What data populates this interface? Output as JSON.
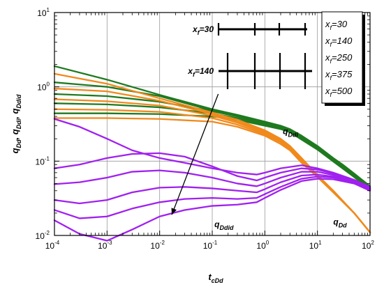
{
  "chart_data": {
    "type": "line",
    "xscale": "log",
    "yscale": "log",
    "xlim": [
      0.0001,
      100
    ],
    "ylim": [
      0.01,
      10
    ],
    "grid": true,
    "xlabel": {
      "main": "t",
      "sub": "cDd"
    },
    "ylabel": {
      "parts": [
        {
          "main": "q",
          "sub": "Dd"
        },
        {
          "main": ", ",
          "sub": ""
        },
        {
          "main": "q",
          "sub": "Ddi"
        },
        {
          "main": ", ",
          "sub": ""
        },
        {
          "main": "q",
          "sub": "Ddid"
        }
      ]
    },
    "xticks": [
      {
        "value": 0.0001,
        "base": "10",
        "exp": "-4"
      },
      {
        "value": 0.001,
        "base": "10",
        "exp": "-3"
      },
      {
        "value": 0.01,
        "base": "10",
        "exp": "-2"
      },
      {
        "value": 0.1,
        "base": "10",
        "exp": "-1"
      },
      {
        "value": 1,
        "base": "10",
        "exp": "0"
      },
      {
        "value": 10,
        "base": "10",
        "exp": "1"
      },
      {
        "value": 100,
        "base": "10",
        "exp": "2"
      }
    ],
    "yticks": [
      {
        "value": 0.01,
        "base": "10",
        "exp": "-2"
      },
      {
        "value": 0.1,
        "base": "10",
        "exp": "-1"
      },
      {
        "value": 1,
        "base": "10",
        "exp": "0"
      },
      {
        "value": 10,
        "base": "10",
        "exp": "1"
      }
    ],
    "colors": {
      "qDdi": "#1f7a1f",
      "qDd": "#f08a1c",
      "qDdid": "#a020f0"
    },
    "legend": {
      "placement": "top-right",
      "entries": [
        {
          "main": "x",
          "sub": "f",
          "value": "=30"
        },
        {
          "main": "x",
          "sub": "f",
          "value": "=140"
        },
        {
          "main": "x",
          "sub": "f",
          "value": "=250"
        },
        {
          "main": "x",
          "sub": "f",
          "value": "=375"
        },
        {
          "main": "x",
          "sub": "f",
          "value": "=500"
        }
      ]
    },
    "annotations": [
      {
        "name": "label-qddi",
        "main": "q",
        "sub": "Ddi",
        "x": 2.2,
        "y": 0.23
      },
      {
        "name": "label-qdd",
        "main": "q",
        "sub": "Dd",
        "x": 20,
        "y": 0.014
      },
      {
        "name": "label-qddid",
        "main": "q",
        "sub": "Ddid",
        "x": 0.11,
        "y": 0.013
      }
    ],
    "arrow": {
      "from": [
        0.13,
        0.8
      ],
      "to": [
        0.017,
        0.019
      ]
    },
    "schematic": [
      {
        "label_main": "x",
        "label_sub": "f",
        "label_value": "=30"
      },
      {
        "label_main": "x",
        "label_sub": "f",
        "label_value": "=140"
      }
    ],
    "series": [
      {
        "group": "qDdi",
        "x": [
          0.0001,
          0.001,
          0.01,
          0.1,
          0.3,
          1,
          2,
          3,
          5,
          10,
          20,
          30,
          50,
          100
        ],
        "y": [
          1.9,
          1.25,
          0.78,
          0.5,
          0.42,
          0.34,
          0.3,
          0.27,
          0.22,
          0.16,
          0.11,
          0.09,
          0.068,
          0.046
        ]
      },
      {
        "group": "qDdi",
        "x": [
          0.0001,
          0.001,
          0.01,
          0.1,
          0.3,
          1,
          2,
          3,
          5,
          10,
          20,
          30,
          50,
          100
        ],
        "y": [
          1.15,
          1.0,
          0.75,
          0.48,
          0.41,
          0.33,
          0.29,
          0.26,
          0.21,
          0.155,
          0.107,
          0.087,
          0.066,
          0.044
        ]
      },
      {
        "group": "qDdi",
        "x": [
          0.0001,
          0.001,
          0.01,
          0.1,
          0.3,
          1,
          2,
          3,
          5,
          10,
          20,
          30,
          50,
          100
        ],
        "y": [
          0.8,
          0.75,
          0.63,
          0.47,
          0.4,
          0.32,
          0.28,
          0.255,
          0.205,
          0.15,
          0.104,
          0.084,
          0.064,
          0.043
        ]
      },
      {
        "group": "qDdi",
        "x": [
          0.0001,
          0.001,
          0.01,
          0.1,
          0.3,
          1,
          2,
          3,
          5,
          10,
          20,
          30,
          50,
          100
        ],
        "y": [
          0.6,
          0.58,
          0.53,
          0.44,
          0.38,
          0.31,
          0.275,
          0.25,
          0.2,
          0.147,
          0.101,
          0.082,
          0.062,
          0.042
        ]
      },
      {
        "group": "qDdi",
        "x": [
          0.0001,
          0.001,
          0.01,
          0.1,
          0.3,
          1,
          2,
          3,
          5,
          10,
          20,
          30,
          50,
          100
        ],
        "y": [
          0.44,
          0.44,
          0.43,
          0.4,
          0.36,
          0.3,
          0.27,
          0.245,
          0.195,
          0.143,
          0.099,
          0.08,
          0.061,
          0.041
        ]
      },
      {
        "group": "qDd",
        "x": [
          0.0001,
          0.001,
          0.01,
          0.1,
          0.3,
          1,
          2,
          3,
          5,
          10,
          20,
          50,
          100
        ],
        "y": [
          1.5,
          1.1,
          0.7,
          0.45,
          0.36,
          0.26,
          0.2,
          0.16,
          0.11,
          0.065,
          0.04,
          0.02,
          0.011
        ]
      },
      {
        "group": "qDd",
        "x": [
          0.0001,
          0.001,
          0.01,
          0.1,
          0.3,
          1,
          2,
          3,
          5,
          10,
          20,
          50,
          100
        ],
        "y": [
          0.95,
          0.87,
          0.65,
          0.43,
          0.34,
          0.25,
          0.19,
          0.155,
          0.105,
          0.064,
          0.04,
          0.02,
          0.011
        ]
      },
      {
        "group": "qDd",
        "x": [
          0.0001,
          0.001,
          0.01,
          0.1,
          0.3,
          1,
          2,
          3,
          5,
          10,
          20,
          50,
          100
        ],
        "y": [
          0.68,
          0.64,
          0.56,
          0.41,
          0.33,
          0.24,
          0.185,
          0.15,
          0.1,
          0.063,
          0.039,
          0.02,
          0.011
        ]
      },
      {
        "group": "qDd",
        "x": [
          0.0001,
          0.001,
          0.01,
          0.1,
          0.3,
          1,
          2,
          3,
          5,
          10,
          20,
          50,
          100
        ],
        "y": [
          0.5,
          0.49,
          0.46,
          0.38,
          0.31,
          0.23,
          0.18,
          0.145,
          0.098,
          0.062,
          0.039,
          0.02,
          0.011
        ]
      },
      {
        "group": "qDd",
        "x": [
          0.0001,
          0.001,
          0.01,
          0.1,
          0.3,
          1,
          2,
          3,
          5,
          10,
          20,
          50,
          100
        ],
        "y": [
          0.38,
          0.38,
          0.37,
          0.34,
          0.29,
          0.22,
          0.17,
          0.14,
          0.095,
          0.061,
          0.038,
          0.02,
          0.011
        ]
      },
      {
        "group": "qDdid",
        "x": [
          0.0001,
          0.0003,
          0.001,
          0.003,
          0.01,
          0.03,
          0.1,
          0.3,
          0.7,
          1,
          2,
          5,
          10,
          20,
          50,
          100
        ],
        "y": [
          0.37,
          0.29,
          0.2,
          0.14,
          0.11,
          0.095,
          0.08,
          0.07,
          0.066,
          0.07,
          0.08,
          0.088,
          0.08,
          0.07,
          0.056,
          0.045
        ]
      },
      {
        "group": "qDdid",
        "x": [
          0.0001,
          0.0003,
          0.001,
          0.003,
          0.01,
          0.03,
          0.1,
          0.3,
          0.7,
          1,
          2,
          5,
          10,
          20,
          50,
          100
        ],
        "y": [
          0.08,
          0.09,
          0.11,
          0.125,
          0.128,
          0.115,
          0.085,
          0.063,
          0.055,
          0.06,
          0.07,
          0.08,
          0.077,
          0.068,
          0.055,
          0.044
        ]
      },
      {
        "group": "qDdid",
        "x": [
          0.0001,
          0.0003,
          0.001,
          0.003,
          0.01,
          0.03,
          0.1,
          0.3,
          0.7,
          1,
          2,
          5,
          10,
          20,
          50,
          100
        ],
        "y": [
          0.049,
          0.052,
          0.06,
          0.072,
          0.075,
          0.07,
          0.06,
          0.05,
          0.046,
          0.05,
          0.06,
          0.072,
          0.072,
          0.065,
          0.053,
          0.043
        ]
      },
      {
        "group": "qDdid",
        "x": [
          0.0001,
          0.0003,
          0.001,
          0.003,
          0.01,
          0.03,
          0.1,
          0.3,
          0.7,
          1,
          2,
          5,
          10,
          20,
          50,
          100
        ],
        "y": [
          0.03,
          0.027,
          0.03,
          0.038,
          0.044,
          0.045,
          0.043,
          0.04,
          0.038,
          0.042,
          0.052,
          0.064,
          0.066,
          0.062,
          0.052,
          0.042
        ]
      },
      {
        "group": "qDdid",
        "x": [
          0.0001,
          0.0003,
          0.001,
          0.003,
          0.01,
          0.03,
          0.1,
          0.3,
          0.7,
          1,
          2,
          5,
          10,
          20,
          50,
          100
        ],
        "y": [
          0.022,
          0.017,
          0.018,
          0.023,
          0.028,
          0.031,
          0.032,
          0.031,
          0.032,
          0.036,
          0.045,
          0.058,
          0.062,
          0.06,
          0.051,
          0.041
        ]
      },
      {
        "group": "qDdid",
        "x": [
          0.0001,
          0.0003,
          0.001,
          0.003,
          0.01,
          0.03,
          0.1,
          0.3,
          0.7,
          1,
          2,
          5,
          10,
          20,
          50,
          100
        ],
        "y": [
          0.016,
          0.0105,
          0.0085,
          0.012,
          0.018,
          0.022,
          0.025,
          0.026,
          0.028,
          0.032,
          0.041,
          0.054,
          0.058,
          0.057,
          0.05,
          0.04
        ]
      }
    ]
  }
}
